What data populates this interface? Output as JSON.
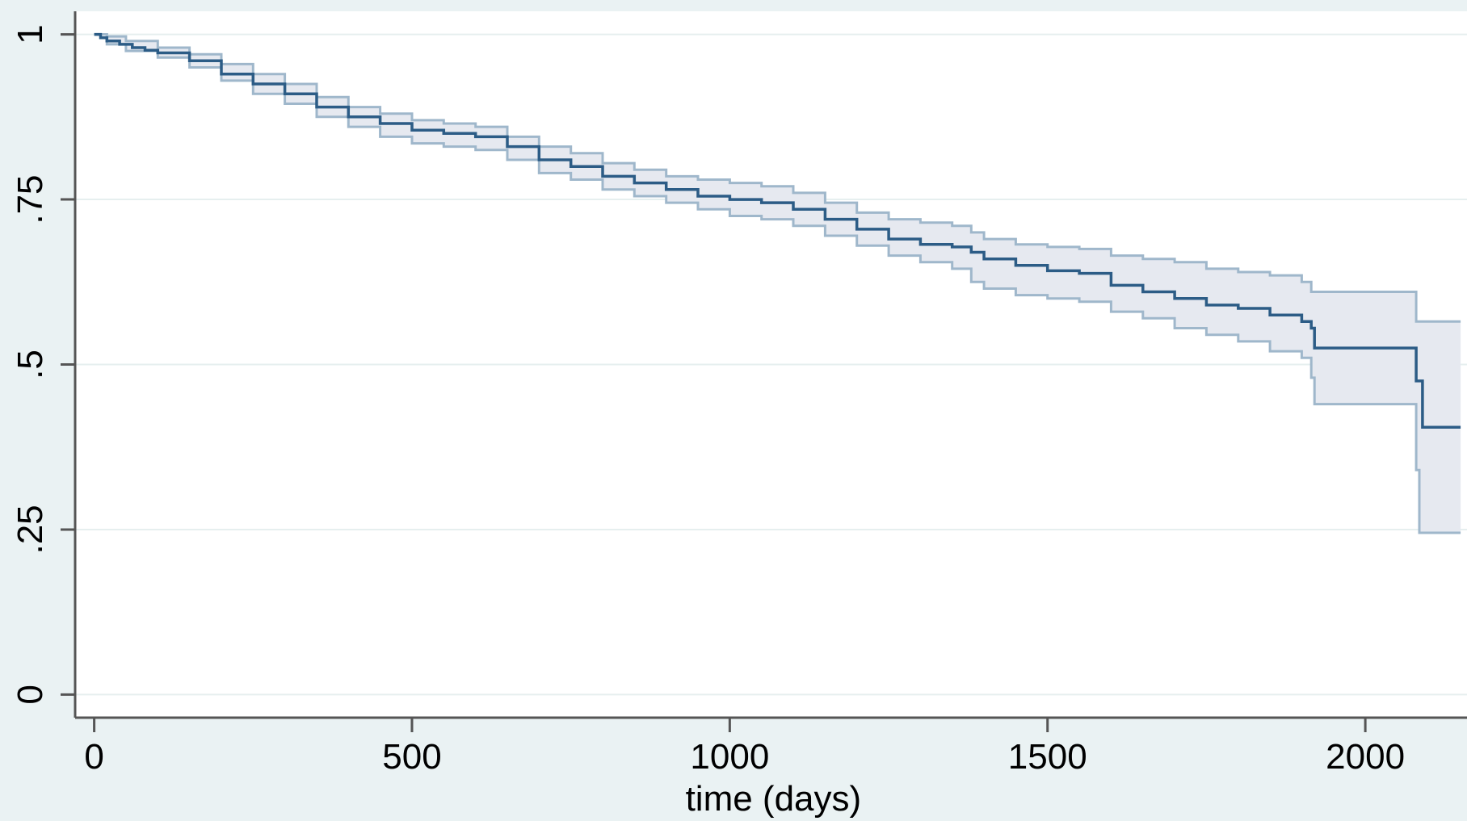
{
  "chart_data": {
    "type": "line",
    "title": "",
    "xlabel": "time (days)",
    "ylabel": "",
    "xlim": [
      -30,
      2160
    ],
    "ylim": [
      -0.035,
      1.035
    ],
    "x_ticks": [
      0,
      500,
      1000,
      1500,
      2000
    ],
    "x_tick_labels": [
      "0",
      "500",
      "1000",
      "1500",
      "2000"
    ],
    "y_ticks": [
      0,
      0.25,
      0.5,
      0.75,
      1
    ],
    "y_tick_labels": [
      "0",
      ".25",
      ".5",
      ".75",
      "1"
    ],
    "grid": true,
    "legend": "none",
    "colors": {
      "background": "#eaf2f3",
      "plot_area": "#ffffff",
      "gridline": "#e6efef",
      "estimate_line": "#2c5c86",
      "ci_line": "#9fb7cb",
      "ci_fill": "#e6e9f0",
      "axis": "#555555"
    },
    "series": [
      {
        "role": "estimate",
        "step": true,
        "x": [
          0,
          10,
          20,
          40,
          60,
          80,
          100,
          150,
          200,
          250,
          300,
          350,
          400,
          450,
          500,
          550,
          600,
          650,
          700,
          750,
          800,
          850,
          900,
          950,
          1000,
          1050,
          1100,
          1150,
          1200,
          1250,
          1300,
          1350,
          1380,
          1400,
          1450,
          1500,
          1550,
          1600,
          1650,
          1700,
          1750,
          1800,
          1850,
          1900,
          1915,
          1920,
          1950,
          2000,
          2050,
          2075,
          2080,
          2085,
          2090,
          2150
        ],
        "y": [
          1.0,
          0.995,
          0.99,
          0.985,
          0.98,
          0.976,
          0.972,
          0.96,
          0.94,
          0.925,
          0.91,
          0.89,
          0.875,
          0.865,
          0.855,
          0.85,
          0.845,
          0.83,
          0.81,
          0.8,
          0.785,
          0.775,
          0.765,
          0.755,
          0.75,
          0.745,
          0.735,
          0.72,
          0.705,
          0.69,
          0.682,
          0.678,
          0.67,
          0.66,
          0.65,
          0.642,
          0.638,
          0.62,
          0.61,
          0.6,
          0.59,
          0.585,
          0.575,
          0.565,
          0.555,
          0.525,
          0.525,
          0.525,
          0.525,
          0.525,
          0.475,
          0.475,
          0.405,
          0.405
        ]
      },
      {
        "role": "upper_ci",
        "step": true,
        "x": [
          0,
          20,
          50,
          100,
          150,
          200,
          250,
          300,
          350,
          400,
          450,
          500,
          550,
          600,
          650,
          700,
          750,
          800,
          850,
          900,
          950,
          1000,
          1050,
          1100,
          1150,
          1200,
          1250,
          1300,
          1350,
          1380,
          1400,
          1450,
          1500,
          1550,
          1600,
          1650,
          1700,
          1750,
          1800,
          1850,
          1900,
          1915,
          1920,
          2000,
          2075,
          2080,
          2085,
          2150
        ],
        "y": [
          1.0,
          0.997,
          0.99,
          0.98,
          0.97,
          0.955,
          0.94,
          0.925,
          0.905,
          0.89,
          0.88,
          0.87,
          0.865,
          0.86,
          0.845,
          0.83,
          0.82,
          0.805,
          0.795,
          0.785,
          0.78,
          0.775,
          0.77,
          0.76,
          0.745,
          0.73,
          0.72,
          0.715,
          0.71,
          0.7,
          0.69,
          0.682,
          0.678,
          0.675,
          0.665,
          0.66,
          0.655,
          0.645,
          0.64,
          0.635,
          0.625,
          0.61,
          0.61,
          0.61,
          0.61,
          0.565,
          0.565,
          0.565
        ]
      },
      {
        "role": "lower_ci",
        "step": true,
        "x": [
          0,
          20,
          50,
          100,
          150,
          200,
          250,
          300,
          350,
          400,
          450,
          500,
          550,
          600,
          650,
          700,
          750,
          800,
          850,
          900,
          950,
          1000,
          1050,
          1100,
          1150,
          1200,
          1250,
          1300,
          1350,
          1380,
          1400,
          1450,
          1500,
          1550,
          1600,
          1650,
          1700,
          1750,
          1800,
          1850,
          1900,
          1915,
          1920,
          2000,
          2075,
          2080,
          2085,
          2150
        ],
        "y": [
          1.0,
          0.985,
          0.975,
          0.965,
          0.95,
          0.93,
          0.91,
          0.895,
          0.875,
          0.86,
          0.845,
          0.835,
          0.83,
          0.825,
          0.81,
          0.79,
          0.78,
          0.765,
          0.755,
          0.745,
          0.735,
          0.725,
          0.72,
          0.71,
          0.695,
          0.68,
          0.665,
          0.655,
          0.645,
          0.625,
          0.615,
          0.605,
          0.6,
          0.595,
          0.58,
          0.57,
          0.555,
          0.545,
          0.535,
          0.52,
          0.51,
          0.48,
          0.44,
          0.44,
          0.44,
          0.34,
          0.245,
          0.245
        ]
      }
    ]
  }
}
